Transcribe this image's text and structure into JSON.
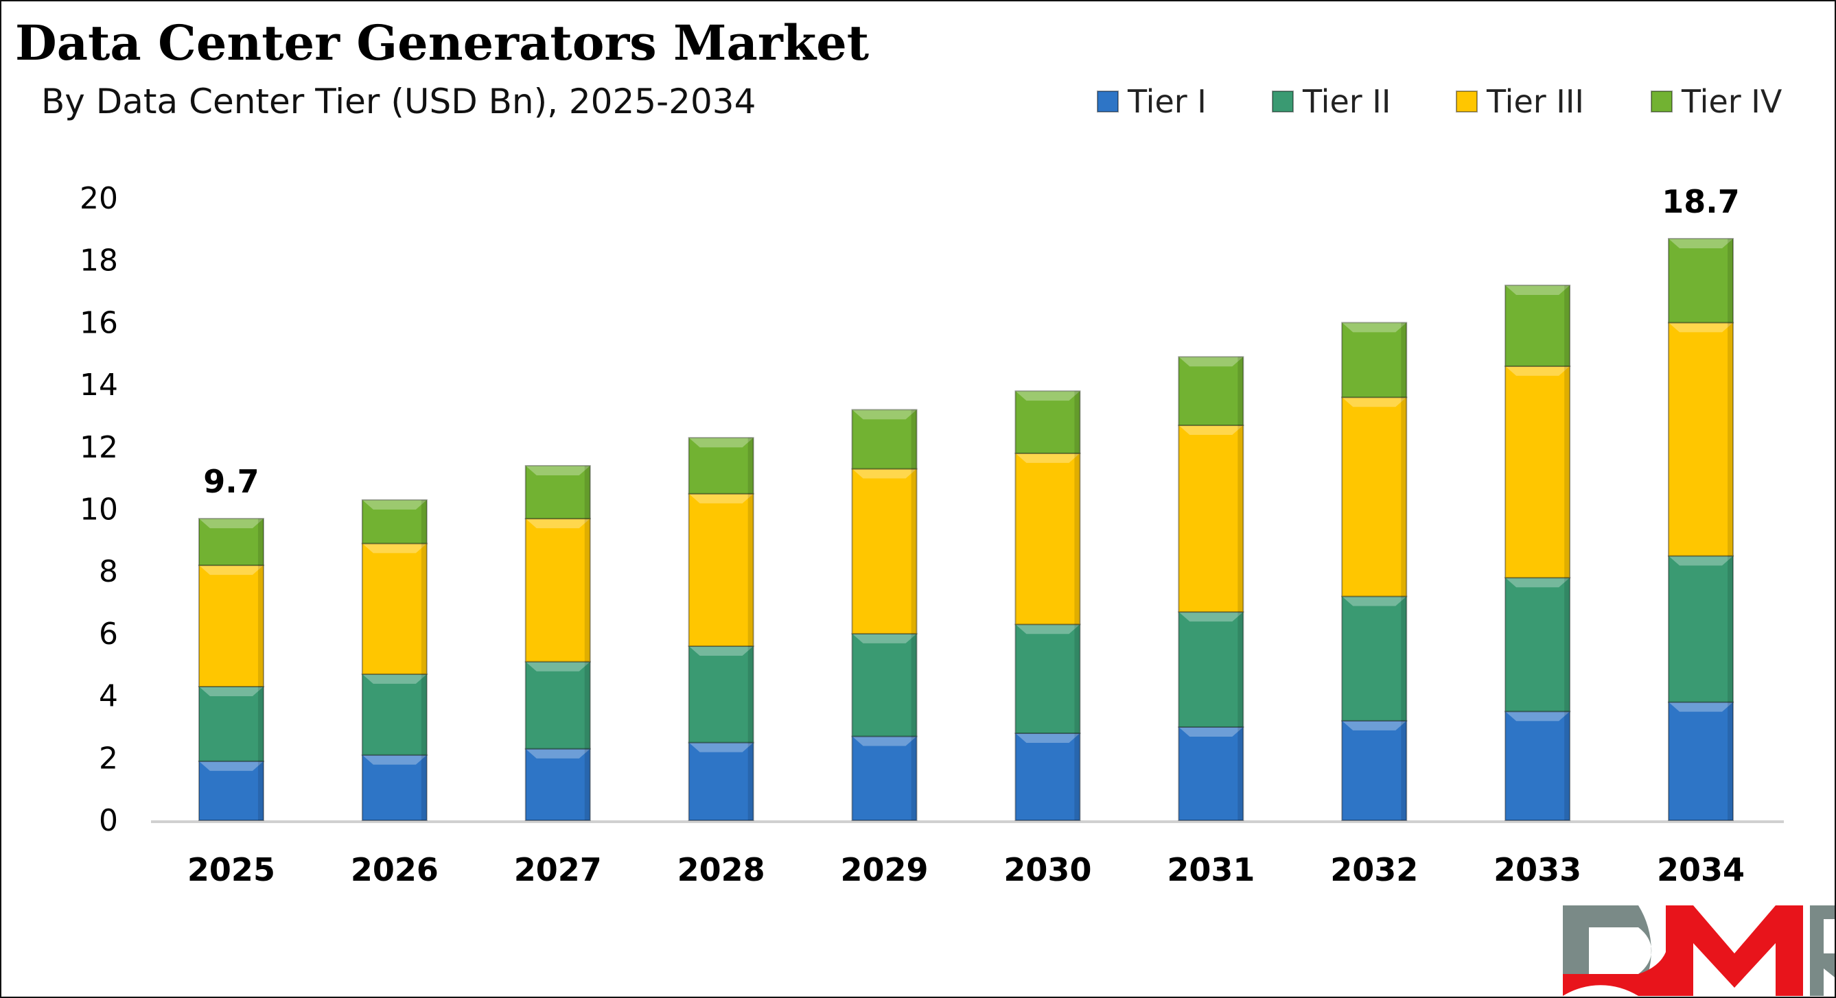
{
  "chart_data": {
    "type": "bar",
    "stacked": true,
    "title": "Data Center Generators Market",
    "subtitle": "By Data Center Tier (USD Bn), 2025-2034",
    "xlabel": "",
    "ylabel": "",
    "ylim": [
      0,
      20
    ],
    "yticks": [
      0,
      2,
      4,
      6,
      8,
      10,
      12,
      14,
      16,
      18,
      20
    ],
    "grid": false,
    "legend_position": "top-right",
    "categories": [
      "2025",
      "2026",
      "2027",
      "2028",
      "2029",
      "2030",
      "2031",
      "2032",
      "2033",
      "2034"
    ],
    "series": [
      {
        "name": "Tier I",
        "color": "#2E75C6",
        "values": [
          1.9,
          2.1,
          2.3,
          2.5,
          2.7,
          2.8,
          3.0,
          3.2,
          3.5,
          3.8
        ]
      },
      {
        "name": "Tier II",
        "color": "#3A9A72",
        "values": [
          2.4,
          2.6,
          2.8,
          3.1,
          3.3,
          3.5,
          3.7,
          4.0,
          4.3,
          4.7
        ]
      },
      {
        "name": "Tier III",
        "color": "#FFC600",
        "values": [
          3.9,
          4.2,
          4.6,
          4.9,
          5.3,
          5.5,
          6.0,
          6.4,
          6.8,
          7.5
        ]
      },
      {
        "name": "Tier IV",
        "color": "#72B232",
        "values": [
          1.5,
          1.4,
          1.7,
          1.8,
          1.9,
          2.0,
          2.2,
          2.4,
          2.6,
          2.7
        ]
      }
    ],
    "data_labels": [
      {
        "category": "2025",
        "text": "9.7"
      },
      {
        "category": "2034",
        "text": "18.7"
      }
    ]
  },
  "logo": {
    "text": "DMR",
    "colors": {
      "gray": "#7A8A87",
      "red": "#E8141B"
    }
  }
}
